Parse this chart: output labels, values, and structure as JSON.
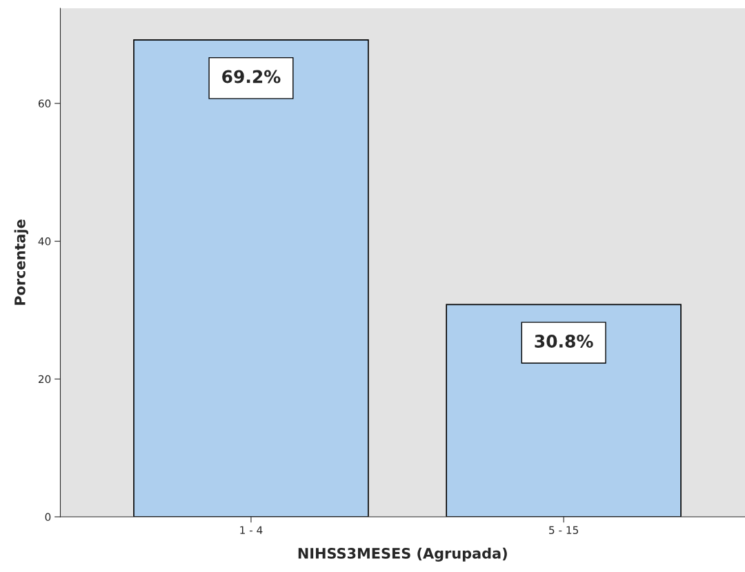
{
  "chart_data": {
    "type": "bar",
    "xlabel": "NIHSS3MESES (Agrupada)",
    "ylabel": "Porcentaje",
    "categories": [
      "1 - 4",
      "5 - 15"
    ],
    "values": [
      69.2,
      30.8
    ],
    "value_labels": [
      "69.2%",
      "30.8%"
    ],
    "color": "#aecfee",
    "ylim": [
      0,
      73.8
    ],
    "yticks": [
      0,
      20,
      40,
      60
    ],
    "grid": false
  }
}
